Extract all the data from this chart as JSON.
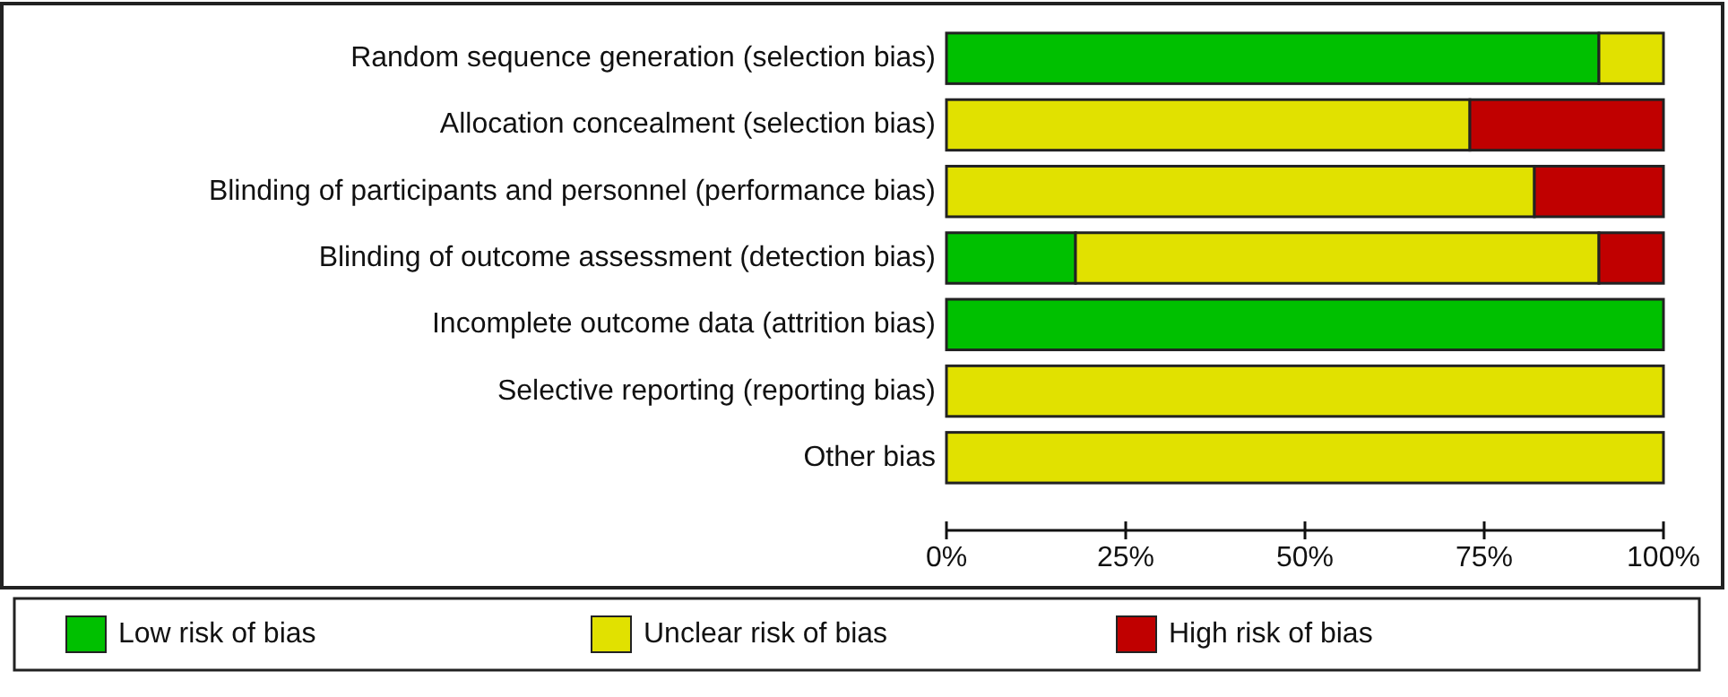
{
  "chart_data": {
    "type": "bar",
    "orientation": "horizontal",
    "stacked": true,
    "categories": [
      "Random sequence generation (selection bias)",
      "Allocation concealment (selection bias)",
      "Blinding of participants and personnel (performance bias)",
      "Blinding of outcome assessment (detection bias)",
      "Incomplete outcome data (attrition bias)",
      "Selective reporting (reporting bias)",
      "Other bias"
    ],
    "series": [
      {
        "name": "Low risk of bias",
        "color": "#00c000",
        "values": [
          91,
          null,
          null,
          18,
          100,
          null,
          null
        ]
      },
      {
        "name": "Unclear risk of bias",
        "color": "#e1e100",
        "values": [
          9,
          73,
          82,
          73,
          null,
          100,
          100
        ]
      },
      {
        "name": "High risk of bias",
        "color": "#c00000",
        "values": [
          null,
          27,
          18,
          9,
          null,
          null,
          null
        ]
      }
    ],
    "xlim": [
      0,
      100
    ],
    "xticks": [
      {
        "value": 0,
        "label": "0%"
      },
      {
        "value": 25,
        "label": "25%"
      },
      {
        "value": 50,
        "label": "50%"
      },
      {
        "value": 75,
        "label": "75%"
      },
      {
        "value": 100,
        "label": "100%"
      }
    ],
    "grid": false,
    "legend": "bottom"
  }
}
